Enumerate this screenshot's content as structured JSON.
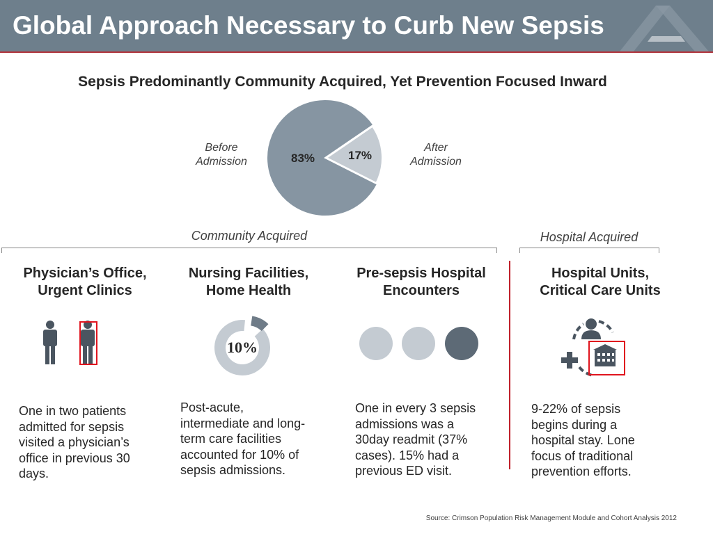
{
  "header": {
    "title": "Global Approach Necessary to Curb New Sepsis"
  },
  "subtitle": "Sepsis Predominantly Community Acquired, Yet Prevention Focused Inward",
  "chart_data": {
    "type": "pie",
    "title": "Sepsis Predominantly Community Acquired, Yet Prevention Focused Inward",
    "slices": [
      {
        "label": "Before Admission",
        "value": 83,
        "display": "83%",
        "color": "#8695a2"
      },
      {
        "label": "After Admission",
        "value": 17,
        "display": "17%",
        "color": "#c4cbd2"
      }
    ],
    "labels": {
      "before": "Before\nAdmission",
      "after": "After\nAdmission"
    }
  },
  "groups": {
    "community": "Community Acquired",
    "hospital": "Hospital Acquired"
  },
  "columns": [
    {
      "heading": "Physician’s Office,\nUrgent Clinics",
      "icon": "person-icons",
      "text": "One in two patients\nadmitted for sepsis\nvisited a physician’s\noffice in previous 30\ndays."
    },
    {
      "heading": "Nursing Facilities,\nHome Health",
      "icon": "donut-icon",
      "icon_value": 10,
      "icon_text": "10%",
      "text": "Post-acute,\nintermediate and long-\nterm care facilities\naccounted for 10% of\nsepsis admissions."
    },
    {
      "heading": "Pre-sepsis Hospital\nEncounters",
      "icon": "circles-icon",
      "text": "One in every 3 sepsis\nadmissions was a\n30day readmit (37%\ncases). 15% had a\nprevious ED visit."
    },
    {
      "heading": "Hospital Units,\nCritical Care Units",
      "icon": "hospital-cycle-icon",
      "text": "9-22% of sepsis\nbegins during a\nhospital stay. Lone\nfocus of traditional\nprevention efforts."
    }
  ],
  "source": "Source: Crimson Population Risk Management Module and Cohort Analysis 2012",
  "colors": {
    "header": "#6e7f8c",
    "accent_red": "#c0212b",
    "pie_dark": "#8695a2",
    "pie_light": "#c4cbd2",
    "icon_dark": "#4a5560"
  }
}
